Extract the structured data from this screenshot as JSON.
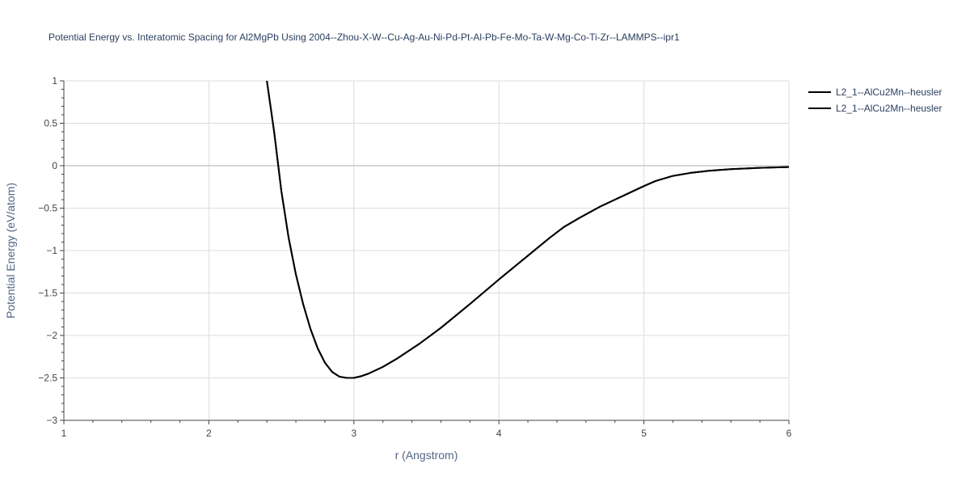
{
  "chart_data": {
    "type": "line",
    "title": "Potential Energy vs. Interatomic Spacing for Al2MgPb Using 2004--Zhou-X-W--Cu-Ag-Au-Ni-Pd-Pt-Al-Pb-Fe-Mo-Ta-W-Mg-Co-Ti-Zr--LAMMPS--ipr1",
    "xlabel": "r (Angstrom)",
    "ylabel": "Potential Energy (eV/atom)",
    "xlim": [
      1,
      6
    ],
    "ylim": [
      -3,
      1
    ],
    "x_ticks": [
      1,
      2,
      3,
      4,
      5,
      6
    ],
    "y_ticks": [
      1,
      0.5,
      0,
      -0.5,
      -1,
      -1.5,
      -2,
      -2.5,
      -3
    ],
    "x_tick_labels": [
      "1",
      "2",
      "3",
      "4",
      "5",
      "6"
    ],
    "y_tick_labels": [
      "1",
      "0.5",
      "0",
      "−0.5",
      "−1",
      "−1.5",
      "−2",
      "−2.5",
      "−3"
    ],
    "grid": true,
    "legend_position": "top-right",
    "series_color": "#000000",
    "series": [
      {
        "name": "L2_1--AlCu2Mn--heusler",
        "x": [
          2.4,
          2.45,
          2.5,
          2.55,
          2.6,
          2.65,
          2.7,
          2.75,
          2.8,
          2.85,
          2.9,
          2.95,
          3.0,
          3.05,
          3.1,
          3.2,
          3.3,
          3.45,
          3.6,
          3.8,
          4.0,
          4.2,
          4.35,
          4.45,
          4.55,
          4.7,
          4.85,
          5.0,
          5.08,
          5.2,
          5.32,
          5.45,
          5.6,
          5.8,
          6.0
        ],
        "y": [
          1.0,
          0.4,
          -0.3,
          -0.85,
          -1.28,
          -1.63,
          -1.92,
          -2.15,
          -2.32,
          -2.43,
          -2.485,
          -2.5,
          -2.5,
          -2.48,
          -2.45,
          -2.37,
          -2.27,
          -2.1,
          -1.91,
          -1.63,
          -1.34,
          -1.06,
          -0.85,
          -0.72,
          -0.62,
          -0.48,
          -0.36,
          -0.24,
          -0.18,
          -0.12,
          -0.085,
          -0.06,
          -0.04,
          -0.025,
          -0.015
        ]
      },
      {
        "name": "L2_1--AlCu2Mn--heusler",
        "x": [
          2.4,
          2.45,
          2.5,
          2.55,
          2.6,
          2.65,
          2.7,
          2.75,
          2.8,
          2.85,
          2.9,
          2.95,
          3.0,
          3.05,
          3.1,
          3.2,
          3.3,
          3.45,
          3.6,
          3.8,
          4.0,
          4.2,
          4.35,
          4.45,
          4.55,
          4.7,
          4.85,
          5.0,
          5.08,
          5.2,
          5.32,
          5.45,
          5.6,
          5.8,
          6.0
        ],
        "y": [
          1.0,
          0.4,
          -0.3,
          -0.85,
          -1.28,
          -1.63,
          -1.92,
          -2.15,
          -2.32,
          -2.43,
          -2.485,
          -2.5,
          -2.5,
          -2.48,
          -2.45,
          -2.37,
          -2.27,
          -2.1,
          -1.91,
          -1.63,
          -1.34,
          -1.06,
          -0.85,
          -0.72,
          -0.62,
          -0.48,
          -0.36,
          -0.24,
          -0.18,
          -0.12,
          -0.085,
          -0.06,
          -0.04,
          -0.025,
          -0.015
        ]
      }
    ]
  }
}
